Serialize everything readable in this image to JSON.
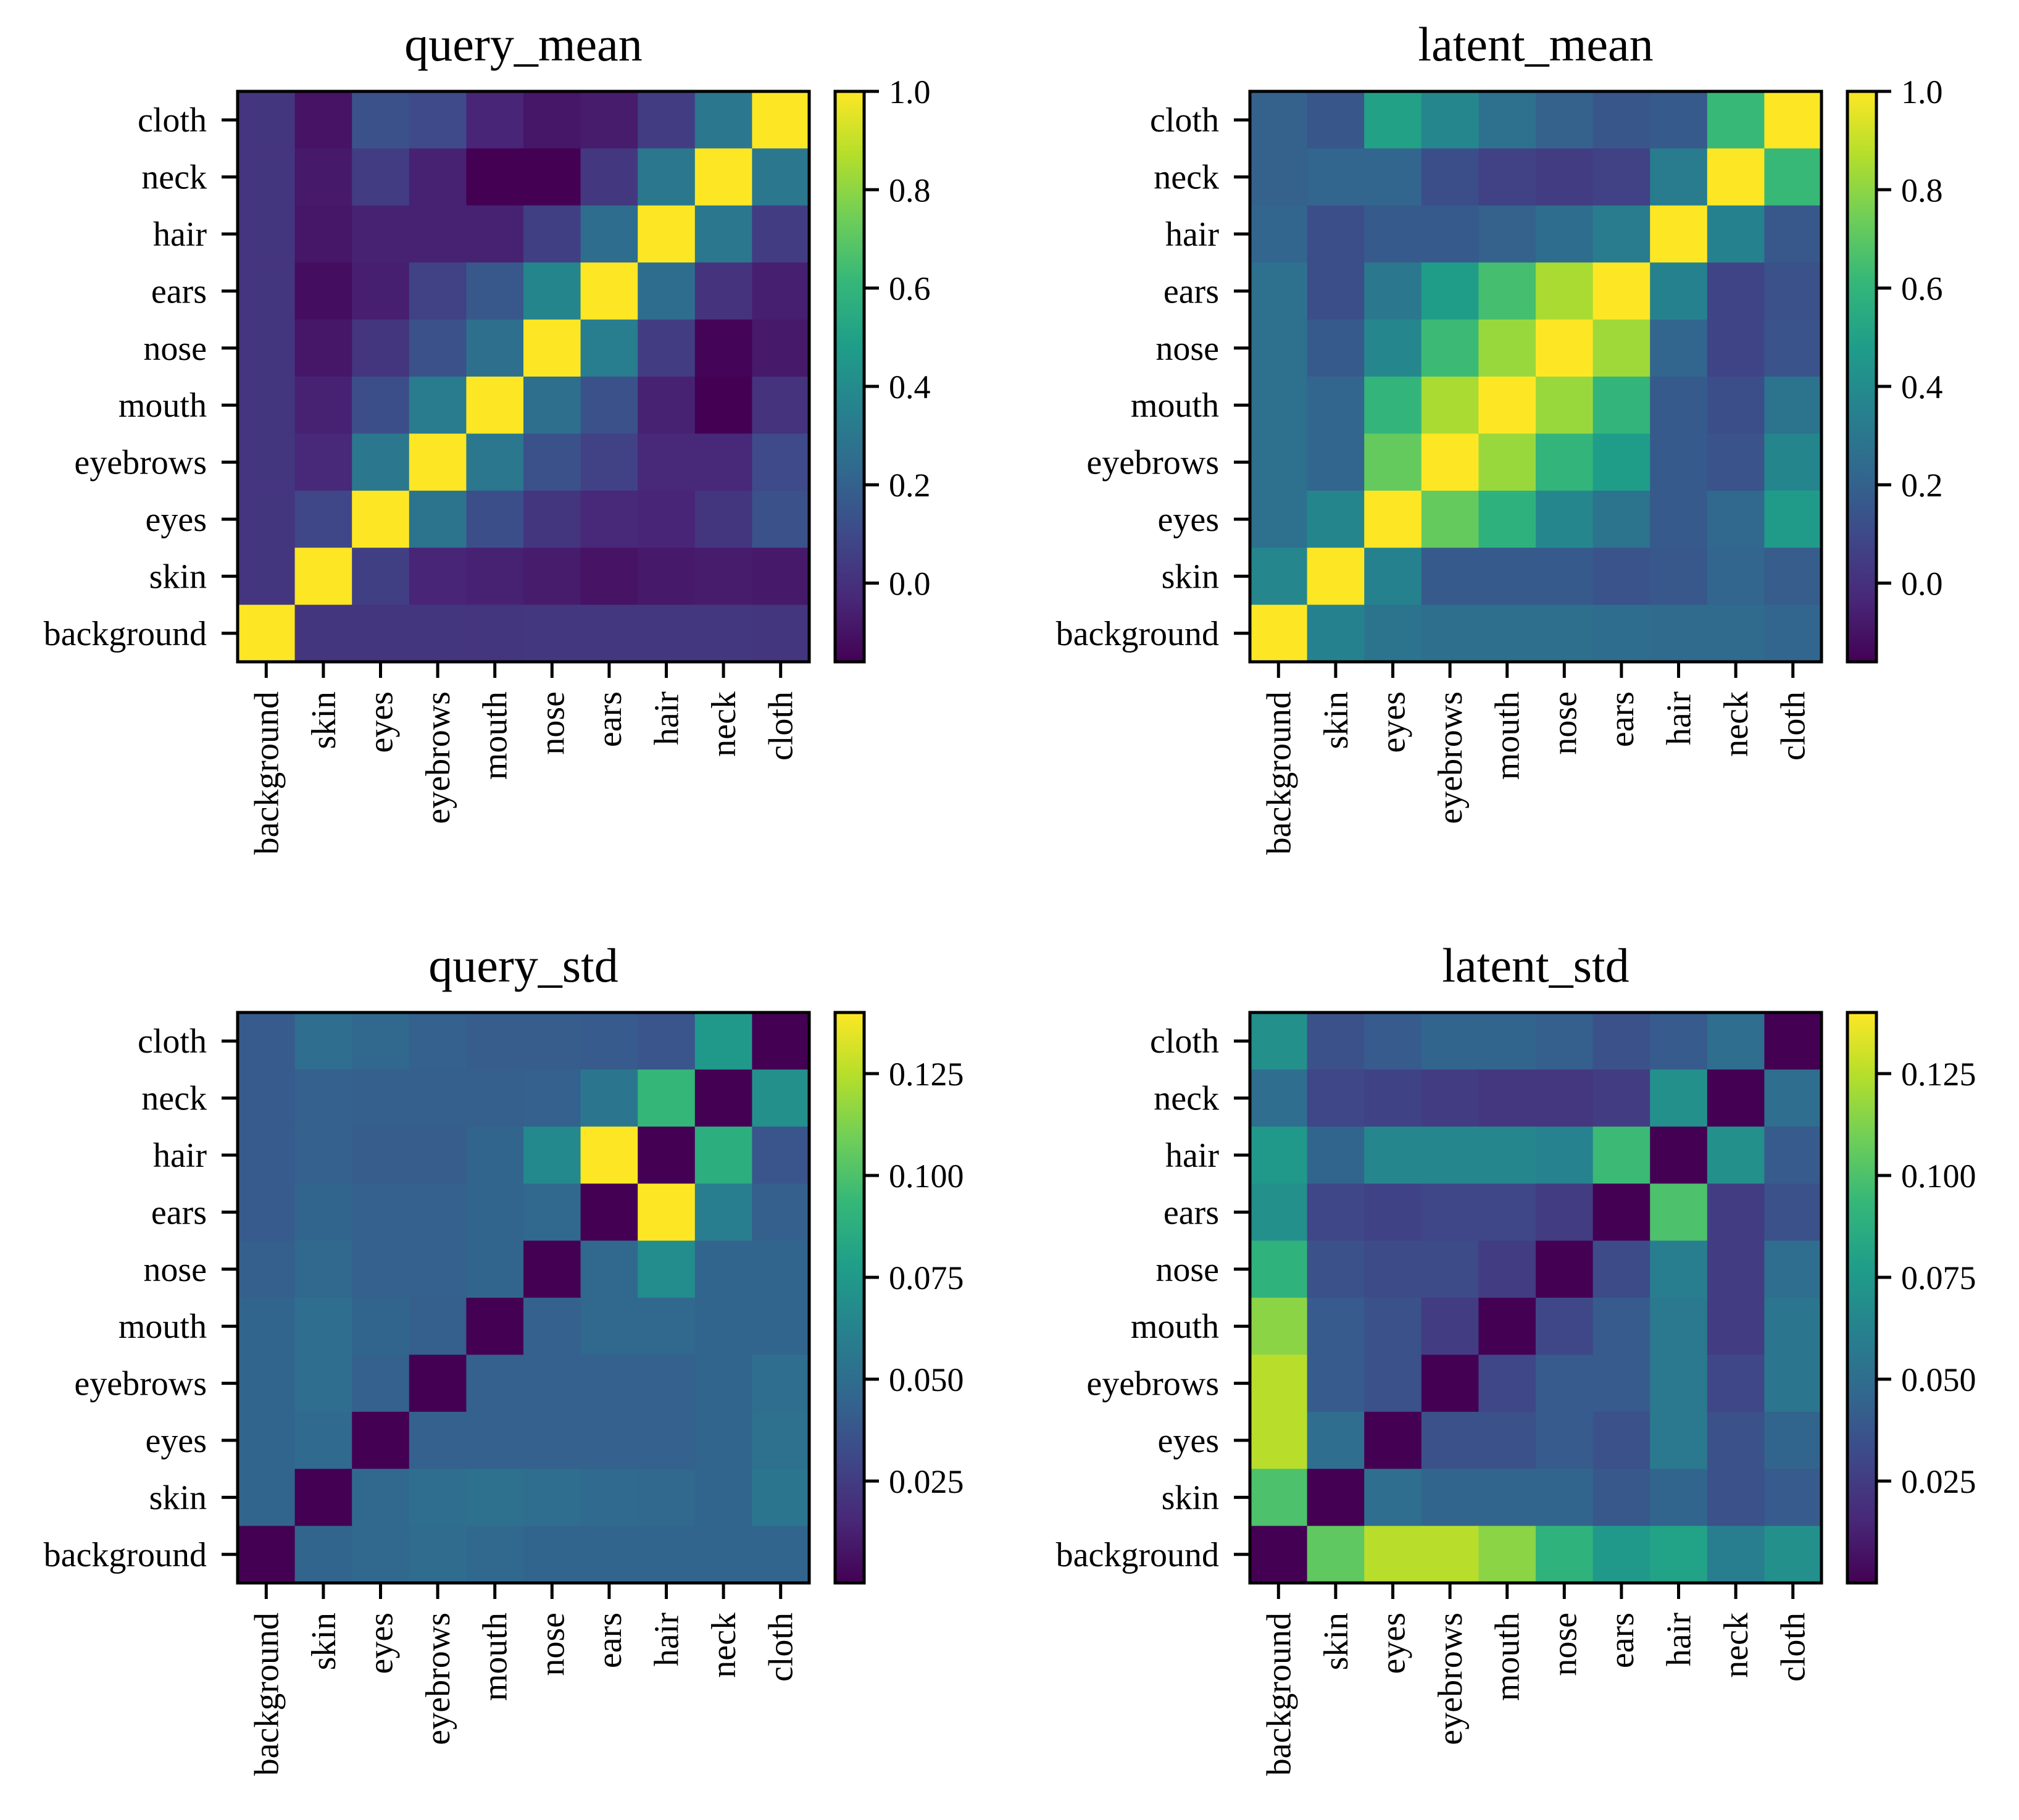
{
  "colors": {
    "viridis_stops": [
      "#440154",
      "#482878",
      "#3e4989",
      "#31688e",
      "#26828e",
      "#1f9e89",
      "#35b779",
      "#6ece58",
      "#b5de2b",
      "#fde725"
    ],
    "axis": "#000000",
    "background": "#ffffff"
  },
  "chart_data": [
    {
      "type": "heatmap",
      "title": "query_mean",
      "rows": [
        "cloth",
        "neck",
        "hair",
        "ears",
        "nose",
        "mouth",
        "eyebrows",
        "eyes",
        "skin",
        "background"
      ],
      "cols": [
        "background",
        "skin",
        "eyes",
        "eyebrows",
        "mouth",
        "nose",
        "ears",
        "hair",
        "neck",
        "cloth"
      ],
      "vmin": -0.16,
      "vmax": 1.0,
      "colorbar_ticks": [
        {
          "label": "0.0",
          "value": 0.0
        },
        {
          "label": "0.2",
          "value": 0.2
        },
        {
          "label": "0.4",
          "value": 0.4
        },
        {
          "label": "0.6",
          "value": 0.6
        },
        {
          "label": "0.8",
          "value": 0.8
        },
        {
          "label": "1.0",
          "value": 1.0
        }
      ],
      "values": [
        [
          0.02,
          -0.1,
          0.13,
          0.1,
          -0.04,
          -0.09,
          -0.07,
          0.05,
          0.3,
          1.0
        ],
        [
          0.02,
          -0.08,
          0.05,
          -0.05,
          -0.16,
          -0.16,
          0.03,
          0.3,
          1.0,
          0.3
        ],
        [
          0.02,
          -0.09,
          -0.05,
          -0.05,
          -0.05,
          0.06,
          0.25,
          1.0,
          0.3,
          0.05
        ],
        [
          0.02,
          -0.12,
          -0.06,
          0.07,
          0.16,
          0.37,
          1.0,
          0.25,
          0.01,
          -0.06
        ],
        [
          0.02,
          -0.09,
          0.02,
          0.13,
          0.26,
          1.0,
          0.33,
          0.05,
          -0.15,
          -0.08
        ],
        [
          0.02,
          -0.05,
          0.12,
          0.32,
          1.0,
          0.26,
          0.13,
          -0.05,
          -0.16,
          0.01
        ],
        [
          0.02,
          -0.03,
          0.3,
          1.0,
          0.3,
          0.13,
          0.07,
          -0.03,
          -0.03,
          0.1
        ],
        [
          0.02,
          0.09,
          1.0,
          0.28,
          0.12,
          0.02,
          -0.03,
          -0.04,
          0.02,
          0.13
        ],
        [
          0.02,
          1.0,
          0.06,
          -0.04,
          -0.05,
          -0.07,
          -0.1,
          -0.08,
          -0.07,
          -0.08
        ],
        [
          1.0,
          0.02,
          0.02,
          0.02,
          0.02,
          0.03,
          0.03,
          0.03,
          0.03,
          0.02
        ]
      ]
    },
    {
      "type": "heatmap",
      "title": "latent_mean",
      "rows": [
        "cloth",
        "neck",
        "hair",
        "ears",
        "nose",
        "mouth",
        "eyebrows",
        "eyes",
        "skin",
        "background"
      ],
      "cols": [
        "background",
        "skin",
        "eyes",
        "eyebrows",
        "mouth",
        "nose",
        "ears",
        "hair",
        "neck",
        "cloth"
      ],
      "vmin": -0.16,
      "vmax": 1.0,
      "colorbar_ticks": [
        {
          "label": "0.0",
          "value": 0.0
        },
        {
          "label": "0.2",
          "value": 0.2
        },
        {
          "label": "0.4",
          "value": 0.4
        },
        {
          "label": "0.6",
          "value": 0.6
        },
        {
          "label": "0.8",
          "value": 0.8
        },
        {
          "label": "1.0",
          "value": 1.0
        }
      ],
      "values": [
        [
          0.2,
          0.15,
          0.5,
          0.38,
          0.27,
          0.2,
          0.15,
          0.17,
          0.62,
          1.0
        ],
        [
          0.2,
          0.22,
          0.22,
          0.12,
          0.07,
          0.05,
          0.07,
          0.32,
          1.0,
          0.62
        ],
        [
          0.22,
          0.12,
          0.17,
          0.17,
          0.2,
          0.25,
          0.32,
          1.0,
          0.35,
          0.16
        ],
        [
          0.27,
          0.12,
          0.3,
          0.48,
          0.65,
          0.85,
          1.0,
          0.35,
          0.08,
          0.13
        ],
        [
          0.27,
          0.17,
          0.38,
          0.63,
          0.82,
          1.0,
          0.83,
          0.22,
          0.08,
          0.14
        ],
        [
          0.27,
          0.22,
          0.6,
          0.85,
          1.0,
          0.82,
          0.6,
          0.17,
          0.12,
          0.28
        ],
        [
          0.27,
          0.22,
          0.72,
          1.0,
          0.82,
          0.6,
          0.48,
          0.17,
          0.14,
          0.37
        ],
        [
          0.27,
          0.37,
          1.0,
          0.72,
          0.58,
          0.38,
          0.28,
          0.17,
          0.23,
          0.47
        ],
        [
          0.38,
          1.0,
          0.35,
          0.17,
          0.17,
          0.17,
          0.14,
          0.16,
          0.22,
          0.18
        ],
        [
          1.0,
          0.35,
          0.28,
          0.26,
          0.26,
          0.26,
          0.25,
          0.24,
          0.24,
          0.22
        ]
      ]
    },
    {
      "type": "heatmap",
      "title": "query_std",
      "rows": [
        "cloth",
        "neck",
        "hair",
        "ears",
        "nose",
        "mouth",
        "eyebrows",
        "eyes",
        "skin",
        "background"
      ],
      "cols": [
        "background",
        "skin",
        "eyes",
        "eyebrows",
        "mouth",
        "nose",
        "ears",
        "hair",
        "neck",
        "cloth"
      ],
      "vmin": 0.0,
      "vmax": 0.14,
      "colorbar_ticks": [
        {
          "label": "0.025",
          "value": 0.025
        },
        {
          "label": "0.050",
          "value": 0.05
        },
        {
          "label": "0.075",
          "value": 0.075
        },
        {
          "label": "0.100",
          "value": 0.1
        },
        {
          "label": "0.125",
          "value": 0.125
        }
      ],
      "values": [
        [
          0.04,
          0.05,
          0.047,
          0.043,
          0.041,
          0.041,
          0.04,
          0.037,
          0.075,
          0.0
        ],
        [
          0.04,
          0.043,
          0.042,
          0.042,
          0.042,
          0.043,
          0.055,
          0.093,
          0.0,
          0.07
        ],
        [
          0.04,
          0.043,
          0.041,
          0.041,
          0.045,
          0.066,
          0.14,
          0.0,
          0.088,
          0.037
        ],
        [
          0.04,
          0.045,
          0.043,
          0.043,
          0.045,
          0.047,
          0.0,
          0.14,
          0.06,
          0.042
        ],
        [
          0.042,
          0.047,
          0.043,
          0.043,
          0.045,
          0.0,
          0.047,
          0.068,
          0.045,
          0.045
        ],
        [
          0.045,
          0.05,
          0.045,
          0.042,
          0.0,
          0.043,
          0.047,
          0.047,
          0.045,
          0.045
        ],
        [
          0.045,
          0.05,
          0.043,
          0.0,
          0.043,
          0.043,
          0.043,
          0.043,
          0.045,
          0.05
        ],
        [
          0.045,
          0.048,
          0.0,
          0.043,
          0.043,
          0.043,
          0.043,
          0.043,
          0.045,
          0.052
        ],
        [
          0.045,
          0.0,
          0.047,
          0.05,
          0.052,
          0.05,
          0.048,
          0.047,
          0.045,
          0.055
        ],
        [
          0.0,
          0.045,
          0.047,
          0.049,
          0.047,
          0.045,
          0.045,
          0.045,
          0.045,
          0.045
        ]
      ]
    },
    {
      "type": "heatmap",
      "title": "latent_std",
      "rows": [
        "cloth",
        "neck",
        "hair",
        "ears",
        "nose",
        "mouth",
        "eyebrows",
        "eyes",
        "skin",
        "background"
      ],
      "cols": [
        "background",
        "skin",
        "eyes",
        "eyebrows",
        "mouth",
        "nose",
        "ears",
        "hair",
        "neck",
        "cloth"
      ],
      "vmin": 0.0,
      "vmax": 0.14,
      "colorbar_ticks": [
        {
          "label": "0.025",
          "value": 0.025
        },
        {
          "label": "0.050",
          "value": 0.05
        },
        {
          "label": "0.075",
          "value": 0.075
        },
        {
          "label": "0.100",
          "value": 0.1
        },
        {
          "label": "0.125",
          "value": 0.125
        }
      ],
      "values": [
        [
          0.07,
          0.035,
          0.04,
          0.045,
          0.045,
          0.042,
          0.035,
          0.04,
          0.05,
          0.0
        ],
        [
          0.05,
          0.03,
          0.028,
          0.025,
          0.022,
          0.022,
          0.025,
          0.07,
          0.0,
          0.05
        ],
        [
          0.075,
          0.045,
          0.065,
          0.065,
          0.065,
          0.062,
          0.095,
          0.0,
          0.07,
          0.04
        ],
        [
          0.07,
          0.03,
          0.028,
          0.03,
          0.03,
          0.025,
          0.0,
          0.1,
          0.025,
          0.035
        ],
        [
          0.09,
          0.035,
          0.032,
          0.032,
          0.025,
          0.0,
          0.032,
          0.06,
          0.025,
          0.05
        ],
        [
          0.115,
          0.04,
          0.035,
          0.025,
          0.0,
          0.03,
          0.04,
          0.057,
          0.025,
          0.055
        ],
        [
          0.125,
          0.04,
          0.035,
          0.0,
          0.03,
          0.04,
          0.04,
          0.057,
          0.03,
          0.055
        ],
        [
          0.125,
          0.05,
          0.0,
          0.035,
          0.035,
          0.04,
          0.035,
          0.057,
          0.035,
          0.045
        ],
        [
          0.1,
          0.0,
          0.05,
          0.045,
          0.045,
          0.045,
          0.038,
          0.045,
          0.035,
          0.04
        ],
        [
          0.0,
          0.105,
          0.125,
          0.125,
          0.115,
          0.09,
          0.075,
          0.08,
          0.06,
          0.07
        ]
      ]
    }
  ]
}
